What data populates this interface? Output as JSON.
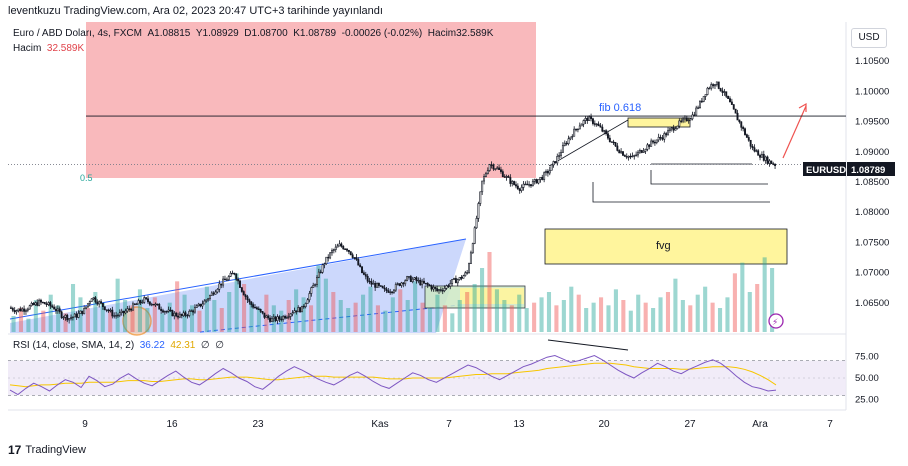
{
  "caption": "leventkuzu TradingView.com, Ara 02, 2023 20:47 UTC+3 tarihinde yayınlandı",
  "legend": {
    "symbol": "Euro / ABD Doları, 4s, FXCM",
    "open": "A1.08815",
    "high": "Y1.08929",
    "low": "D1.08700",
    "close": "K1.08789",
    "change": "-0.00026 (-0.02%)",
    "volume": "Hacim32.589K",
    "volume_label": "Hacim",
    "volume_value": "32.589K"
  },
  "currency_button": "USD",
  "price_label": {
    "symbol": "EURUSD",
    "value": "1.08789"
  },
  "annotations": {
    "fib": "fib 0.618",
    "fvg": "fvg",
    "fib_level": "0.5"
  },
  "rsi_legend": {
    "name": "RSI (14, close, SMA, 14, 2)",
    "rsi": "36.22",
    "ma": "42.31",
    "v1": "∅",
    "v2": "∅"
  },
  "footer": {
    "brand": "TradingView",
    "logo": "17"
  },
  "colors": {
    "up": "#26a69a",
    "down": "#ef5350",
    "candle": "#131722",
    "rsi": "#7e57c2",
    "rsi_ma": "#f7c600",
    "fvg": "#fff59d",
    "supply_zone": "#f7a1a6",
    "wedge": "#2962ff"
  },
  "chart_data": [
    {
      "type": "candlestick",
      "ylim": [
        1.0625,
        1.1065
      ],
      "y_ticks": [
        "1.10500",
        "1.10000",
        "1.09500",
        "1.09000",
        "1.08500",
        "1.08000",
        "1.07500",
        "1.07000",
        "1.06500"
      ],
      "x_ticks": [
        "9",
        "16",
        "23",
        "Kas",
        "7",
        "13",
        "20",
        "27",
        "Ara",
        "7"
      ],
      "last_price": 1.08789,
      "levels": [
        1.0959,
        1.0879
      ],
      "close_path": [
        1.0642,
        1.0638,
        1.064,
        1.0645,
        1.0651,
        1.0648,
        1.0642,
        1.063,
        1.0625,
        1.0629,
        1.0638,
        1.066,
        1.065,
        1.064,
        1.0629,
        1.0632,
        1.064,
        1.0648,
        1.0655,
        1.065,
        1.0642,
        1.0636,
        1.0631,
        1.0628,
        1.0634,
        1.0642,
        1.0652,
        1.0665,
        1.068,
        1.069,
        1.07,
        1.0672,
        1.065,
        1.064,
        1.0628,
        1.0622,
        1.0624,
        1.063,
        1.0638,
        1.064,
        1.0665,
        1.069,
        1.0717,
        1.0735,
        1.0745,
        1.074,
        1.0725,
        1.07,
        1.0683,
        1.0678,
        1.067,
        1.0672,
        1.0682,
        1.069,
        1.0688,
        1.0682,
        1.0678,
        1.067,
        1.0675,
        1.0685,
        1.069,
        1.07,
        1.077,
        1.085,
        1.088,
        1.0872,
        1.086,
        1.0848,
        1.084,
        1.0845,
        1.085,
        1.0858,
        1.087,
        1.089,
        1.0912,
        1.093,
        1.0945,
        1.0955,
        1.0948,
        1.0935,
        1.092,
        1.0905,
        1.0895,
        1.089,
        1.09,
        1.091,
        1.0918,
        1.0925,
        1.0935,
        1.0945,
        1.0952,
        1.096,
        1.098,
        1.1005,
        1.1015,
        1.1,
        1.098,
        1.0955,
        1.093,
        1.0905,
        1.0895,
        1.0885,
        1.0879
      ]
    },
    {
      "type": "bar",
      "name": "Hacim",
      "value": "32.589K",
      "bars": [
        6,
        9,
        5,
        12,
        8,
        14,
        10,
        7,
        18,
        13,
        9,
        15,
        11,
        8,
        20,
        12,
        10,
        16,
        9,
        13,
        7,
        11,
        19,
        14,
        10,
        8,
        17,
        12,
        9,
        15,
        22,
        18,
        11,
        9,
        14,
        10,
        8,
        12,
        16,
        13,
        10,
        25,
        20,
        15,
        12,
        9,
        11,
        14,
        17,
        10,
        8,
        13,
        16,
        12,
        19,
        11,
        9,
        14,
        10,
        7,
        12,
        15,
        18,
        24,
        30,
        16,
        12,
        10,
        14,
        9,
        11,
        13,
        15,
        10,
        12,
        17,
        14,
        9,
        11,
        13,
        10,
        16,
        12,
        8,
        14,
        11,
        9,
        13,
        15,
        20,
        12,
        10,
        14,
        17,
        11,
        9,
        13,
        22,
        26,
        15,
        18,
        28,
        24
      ]
    },
    {
      "type": "line",
      "name": "RSI (14, close, SMA, 14, 2)",
      "ylim": [
        20,
        80
      ],
      "y_ticks": [
        "75.00",
        "50.00",
        "25.00"
      ],
      "bands": [
        70,
        30
      ],
      "rsi": [
        36,
        31,
        38,
        44,
        40,
        35,
        42,
        48,
        45,
        39,
        52,
        47,
        40,
        43,
        50,
        55,
        49,
        44,
        41,
        47,
        53,
        58,
        51,
        45,
        42,
        48,
        55,
        61,
        56,
        50,
        46,
        40,
        37,
        44,
        52,
        58,
        63,
        59,
        54,
        49,
        45,
        42,
        47,
        53,
        57,
        52,
        46,
        41,
        38,
        44,
        50,
        56,
        53,
        48,
        45,
        50,
        55,
        60,
        65,
        62,
        57,
        52,
        48,
        53,
        58,
        63,
        66,
        70,
        74,
        76,
        72,
        68,
        70,
        73,
        76,
        71,
        65,
        59,
        54,
        50,
        56,
        61,
        67,
        63,
        58,
        55,
        60,
        64,
        68,
        71,
        67,
        60,
        52,
        45,
        40,
        38,
        35,
        36
      ],
      "rsi_ma": [
        42,
        41,
        40,
        41,
        42,
        42,
        43,
        44,
        44,
        44,
        45,
        45,
        45,
        45,
        46,
        47,
        47,
        47,
        46,
        46,
        47,
        48,
        49,
        49,
        48,
        48,
        49,
        50,
        51,
        51,
        51,
        50,
        49,
        48,
        48,
        49,
        50,
        51,
        52,
        52,
        52,
        51,
        51,
        51,
        51,
        51,
        51,
        50,
        49,
        49,
        49,
        50,
        50,
        50,
        50,
        50,
        51,
        52,
        53,
        54,
        54,
        55,
        55,
        55,
        56,
        57,
        58,
        59,
        61,
        62,
        63,
        64,
        65,
        66,
        67,
        67,
        67,
        66,
        65,
        63,
        62,
        61,
        61,
        61,
        61,
        60,
        60,
        61,
        62,
        63,
        63,
        63,
        62,
        60,
        57,
        53,
        48,
        42
      ],
      "last_rsi": 36.22,
      "last_ma": 42.31
    }
  ]
}
